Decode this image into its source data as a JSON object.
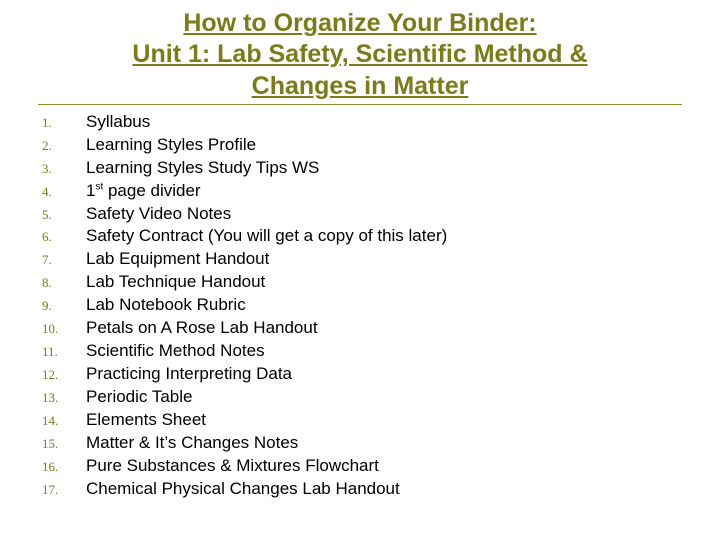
{
  "title": {
    "line1": "How to Organize Your Binder:",
    "line2": "Unit 1: Lab Safety, Scientific Method  &",
    "line3": "Changes in Matter"
  },
  "colors": {
    "accent": "#7b7b1a",
    "text": "#000000",
    "rule": "#8a8a30",
    "background": "#ffffff"
  },
  "typography": {
    "title_fontsize": 25,
    "title_weight": "bold",
    "title_family": "Arial",
    "num_fontsize": 13,
    "num_family": "Georgia",
    "item_fontsize": 17,
    "item_family": "Verdana"
  },
  "items": [
    {
      "n": "1.",
      "text": "Syllabus"
    },
    {
      "n": "2.",
      "text": "Learning Styles Profile"
    },
    {
      "n": "3.",
      "text": "Learning Styles Study Tips WS"
    },
    {
      "n": "4.",
      "text": "1st page divider",
      "ordinal_sup": true
    },
    {
      "n": "5.",
      "text": "Safety Video Notes"
    },
    {
      "n": "6.",
      "text": "Safety Contract (You will get a copy of this later)"
    },
    {
      "n": "7.",
      "text": "Lab Equipment Handout"
    },
    {
      "n": "8.",
      "text": "Lab Technique Handout"
    },
    {
      "n": "9.",
      "text": "Lab Notebook Rubric"
    },
    {
      "n": "10.",
      "text": "Petals on A Rose Lab Handout"
    },
    {
      "n": "11.",
      "text": "Scientific Method Notes"
    },
    {
      "n": "12.",
      "text": "Practicing Interpreting Data"
    },
    {
      "n": "13.",
      "text": "Periodic Table"
    },
    {
      "n": "14.",
      "text": "Elements Sheet"
    },
    {
      "n": "15.",
      "text": "Matter & It’s Changes Notes"
    },
    {
      "n": "16.",
      "text": "Pure Substances & Mixtures Flowchart"
    },
    {
      "n": "17.",
      "text": "Chemical Physical Changes Lab Handout"
    }
  ]
}
